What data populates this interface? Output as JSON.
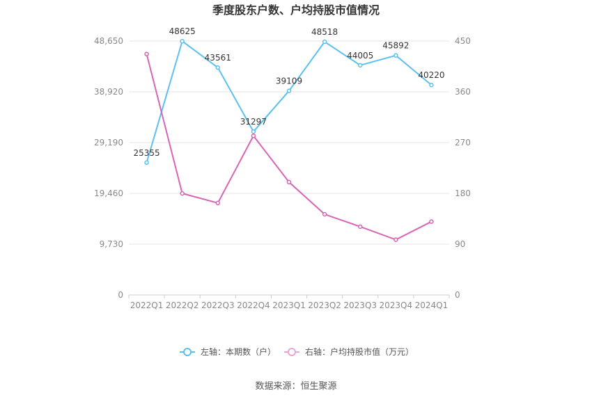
{
  "chart_data": {
    "type": "line",
    "title": "季度股东户数、户均持股市值情况",
    "categories": [
      "2022Q1",
      "2022Q2",
      "2022Q3",
      "2022Q4",
      "2023Q1",
      "2023Q2",
      "2023Q3",
      "2023Q4",
      "2024Q1"
    ],
    "left_axis": {
      "ticks": [
        "0",
        "9,730",
        "19,460",
        "29,190",
        "38,920",
        "48,650"
      ],
      "ylim": [
        0,
        48650
      ]
    },
    "right_axis": {
      "ticks": [
        "0",
        "90",
        "180",
        "270",
        "360",
        "450"
      ],
      "ylim": [
        0,
        450
      ]
    },
    "series": [
      {
        "name": "左轴：本期数（户）",
        "axis": "left",
        "color": "#5bc0ef",
        "values": [
          25355,
          48625,
          43561,
          31297,
          39109,
          48518,
          44005,
          45892,
          40220
        ],
        "labels": [
          "25355",
          "48625",
          "43561",
          "31297",
          "39109",
          "48518",
          "44005",
          "45892",
          "40220"
        ]
      },
      {
        "name": "右轴：户均持股市值（万元）",
        "axis": "right",
        "color": "#d865b4",
        "values": [
          427,
          180,
          163,
          282,
          200,
          143,
          121,
          98,
          130
        ]
      }
    ],
    "grid": true,
    "legend_position": "bottom"
  },
  "source": "数据来源：恒生聚源"
}
